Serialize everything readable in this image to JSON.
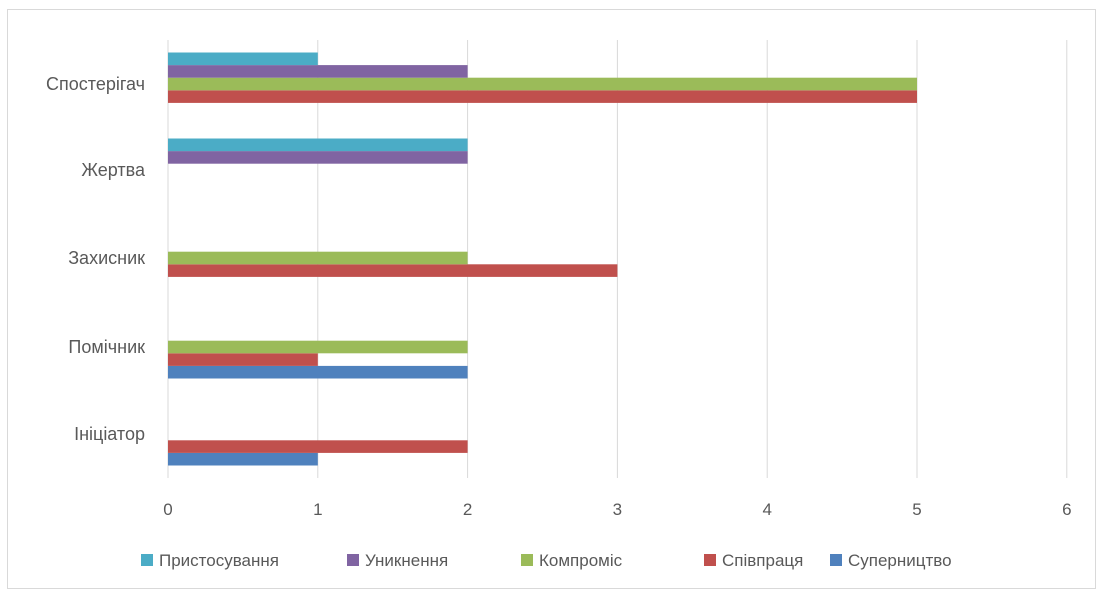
{
  "chart_data": {
    "type": "bar",
    "orientation": "horizontal",
    "title": "",
    "xlabel": "",
    "ylabel": "",
    "xlim": [
      0,
      6
    ],
    "x_ticks": [
      "0",
      "1",
      "2",
      "3",
      "4",
      "5",
      "6"
    ],
    "grid": true,
    "legend_position": "bottom",
    "categories": [
      "Ініціатор",
      "Помічник",
      "Захисник",
      "Жертва",
      "Спостерігач"
    ],
    "series": [
      {
        "name": "Суперництво",
        "color": "#4f81bd",
        "values": [
          1,
          2,
          0,
          0,
          0
        ]
      },
      {
        "name": "Співпраця",
        "color": "#c0504d",
        "values": [
          2,
          1,
          3,
          0,
          5
        ]
      },
      {
        "name": "Компроміс",
        "color": "#9bbb59",
        "values": [
          0,
          2,
          2,
          0,
          5
        ]
      },
      {
        "name": "Уникнення",
        "color": "#8064a2",
        "values": [
          0,
          0,
          0,
          2,
          2
        ]
      },
      {
        "name": "Пристосування",
        "color": "#4bacc6",
        "values": [
          0,
          0,
          0,
          2,
          1
        ]
      }
    ],
    "legend_order": [
      "Пристосування",
      "Уникнення",
      "Компроміс",
      "Співпраця",
      "Суперництво"
    ]
  }
}
